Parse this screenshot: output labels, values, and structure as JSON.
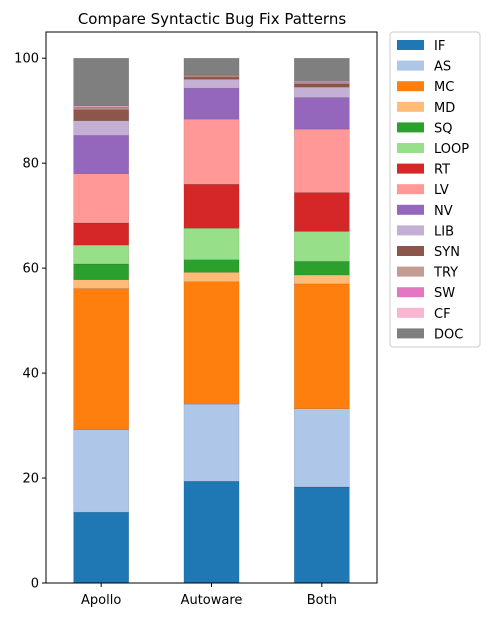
{
  "chart_data": {
    "type": "bar",
    "stacked": true,
    "title": "Compare Syntactic Bug Fix Patterns",
    "xlabel": "",
    "ylabel": "",
    "categories": [
      "Apollo",
      "Autoware",
      "Both"
    ],
    "ylim": [
      0,
      105
    ],
    "yticks": [
      0,
      20,
      40,
      60,
      80,
      100
    ],
    "grid": false,
    "legend_position": "outside-right",
    "series": [
      {
        "name": "IF",
        "color": "#1f77b4",
        "values": [
          13.5,
          19.4,
          18.3
        ]
      },
      {
        "name": "AS",
        "color": "#aec7e8",
        "values": [
          15.7,
          14.7,
          14.9
        ]
      },
      {
        "name": "MC",
        "color": "#ff7f0e",
        "values": [
          26.9,
          23.3,
          23.8
        ]
      },
      {
        "name": "MD",
        "color": "#ffbb78",
        "values": [
          1.7,
          1.8,
          1.7
        ]
      },
      {
        "name": "SQ",
        "color": "#2ca02c",
        "values": [
          3.0,
          2.4,
          2.6
        ]
      },
      {
        "name": "LOOP",
        "color": "#98df8a",
        "values": [
          3.6,
          6.0,
          5.7
        ]
      },
      {
        "name": "RT",
        "color": "#d62728",
        "values": [
          4.2,
          8.4,
          7.4
        ]
      },
      {
        "name": "LV",
        "color": "#ff9896",
        "values": [
          9.4,
          12.4,
          12.1
        ]
      },
      {
        "name": "NV",
        "color": "#9467bd",
        "values": [
          7.3,
          5.9,
          6.0
        ]
      },
      {
        "name": "LIB",
        "color": "#c5b0d5",
        "values": [
          2.8,
          1.7,
          2.0
        ]
      },
      {
        "name": "SYN",
        "color": "#8c564b",
        "values": [
          2.1,
          0.4,
          0.6
        ]
      },
      {
        "name": "TRY",
        "color": "#c49c94",
        "values": [
          0.3,
          0.2,
          0.2
        ]
      },
      {
        "name": "SW",
        "color": "#e377c2",
        "values": [
          0.2,
          0.1,
          0.1
        ]
      },
      {
        "name": "CF",
        "color": "#f7b6d2",
        "values": [
          0.2,
          0.1,
          0.2
        ]
      },
      {
        "name": "DOC",
        "color": "#7f7f7f",
        "values": [
          9.1,
          3.2,
          4.4
        ]
      }
    ]
  }
}
